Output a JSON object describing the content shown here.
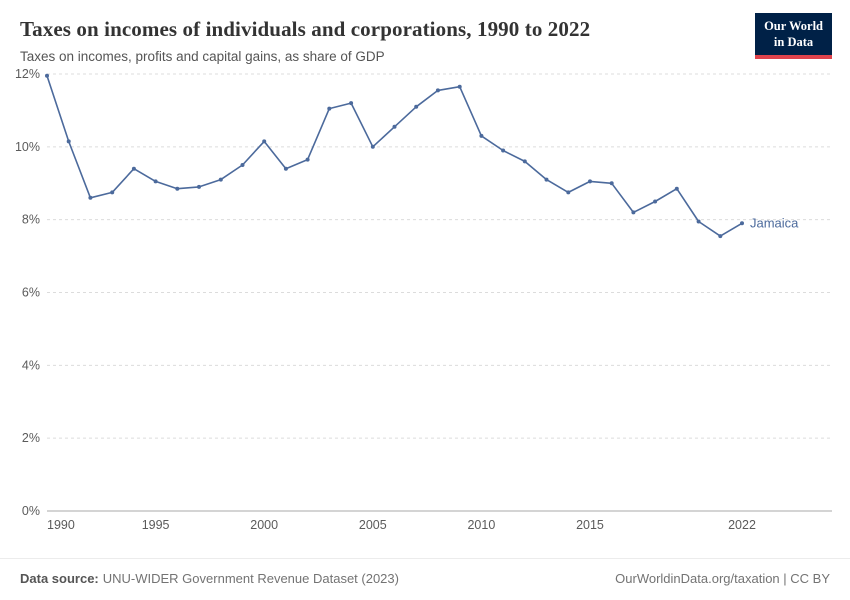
{
  "header": {
    "title": "Taxes on incomes of individuals and corporations, 1990 to 2022",
    "subtitle": "Taxes on incomes, profits and capital gains, as share of GDP",
    "logo": {
      "line1": "Our World",
      "line2": "in Data",
      "bg_color": "#002147",
      "accent_color": "#e0434c"
    }
  },
  "chart_data": {
    "type": "line",
    "title": "Taxes on incomes of individuals and corporations, 1990 to 2022",
    "subtitle": "Taxes on incomes, profits and capital gains, as share of GDP",
    "xlabel": "",
    "ylabel": "",
    "xlim": [
      1990,
      2022
    ],
    "ylim": [
      0,
      12
    ],
    "x_ticks": [
      1990,
      1995,
      2000,
      2005,
      2010,
      2015,
      2022
    ],
    "y_ticks": [
      "0%",
      "2%",
      "4%",
      "6%",
      "8%",
      "10%",
      "12%"
    ],
    "grid": "horizontal-dashed",
    "legend_position": "end-of-line",
    "series": [
      {
        "name": "Jamaica",
        "color": "#4c6a9c",
        "x": [
          1990,
          1991,
          1992,
          1993,
          1994,
          1995,
          1996,
          1997,
          1998,
          1999,
          2000,
          2001,
          2002,
          2003,
          2004,
          2005,
          2006,
          2007,
          2008,
          2009,
          2010,
          2011,
          2012,
          2013,
          2014,
          2015,
          2016,
          2017,
          2018,
          2019,
          2020,
          2021,
          2022
        ],
        "values": [
          11.95,
          10.15,
          8.6,
          8.75,
          9.4,
          9.05,
          8.85,
          8.9,
          9.1,
          9.5,
          10.15,
          9.4,
          9.65,
          11.05,
          11.2,
          10.0,
          10.55,
          11.1,
          11.55,
          11.65,
          10.3,
          9.9,
          9.6,
          9.1,
          8.75,
          9.05,
          9.0,
          8.2,
          8.5,
          8.85,
          7.95,
          7.55,
          7.9
        ]
      }
    ]
  },
  "footer": {
    "source_label": "Data source:",
    "source_text": "UNU-WIDER Government Revenue Dataset (2023)",
    "right_text": "OurWorldinData.org/taxation | CC BY"
  }
}
